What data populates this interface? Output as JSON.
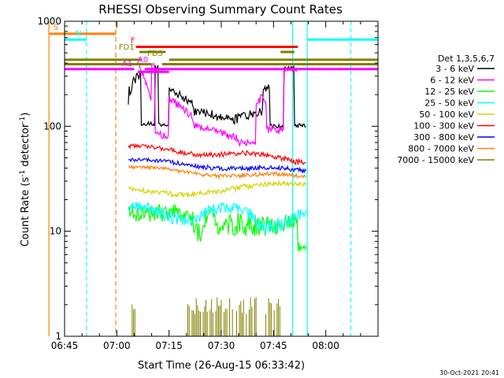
{
  "chart_data": {
    "type": "line",
    "title": "RHESSI Observing Summary Count Rates",
    "xlabel": "Start Time (26-Aug-15 06:33:42)",
    "ylabel_main": "Count Rate (s",
    "ylabel_sup1": "-1",
    "ylabel_mid": " detector",
    "ylabel_sup2": "-1",
    "ylabel_end": ")",
    "ylog": true,
    "ylim": [
      1,
      1000
    ],
    "xlim_minutes": [
      -15,
      75
    ],
    "y_ticks": [
      {
        "value": 1,
        "label": "1"
      },
      {
        "value": 10,
        "label": "10"
      },
      {
        "value": 100,
        "label": "100"
      },
      {
        "value": 1000,
        "label": "1000"
      }
    ],
    "x_ticks": [
      {
        "value": -15,
        "label": "06:45"
      },
      {
        "value": 0,
        "label": "07:00"
      },
      {
        "value": 15,
        "label": "07:15"
      },
      {
        "value": 30,
        "label": "07:30"
      },
      {
        "value": 45,
        "label": "07:45"
      },
      {
        "value": 60,
        "label": "08:00"
      }
    ],
    "legend_title": "Det 1,3,5,6,7",
    "series": [
      {
        "name": "3 - 6 keV",
        "color": "#000000"
      },
      {
        "name": "6 - 12 keV",
        "color": "#ff00ff"
      },
      {
        "name": "12 - 25 keV",
        "color": "#00ff00"
      },
      {
        "name": "25 - 50 keV",
        "color": "#00ffff"
      },
      {
        "name": "50 - 100 keV",
        "color": "#d4d400"
      },
      {
        "name": "100 - 300 keV",
        "color": "#ff0000"
      },
      {
        "name": "300 - 800 keV",
        "color": "#0000ff"
      },
      {
        "name": "800 - 7000 keV",
        "color": "#ff8000"
      },
      {
        "name": "7000 - 15000 keV",
        "color": "#808000"
      }
    ],
    "flags": [
      {
        "label": "S",
        "color": "#ff8000"
      },
      {
        "label": "N",
        "color": "#00ffff"
      },
      {
        "label": "F",
        "color": "#ff0000"
      },
      {
        "label": "FD1",
        "color": "#808000"
      },
      {
        "label": "FD3",
        "color": "#808000"
      },
      {
        "label": "A1",
        "color": "#ff00ff"
      },
      {
        "label": "A0",
        "color": "#ff00ff"
      }
    ]
  },
  "footer": {
    "timestamp": "30-Oct-2021 20:41"
  }
}
